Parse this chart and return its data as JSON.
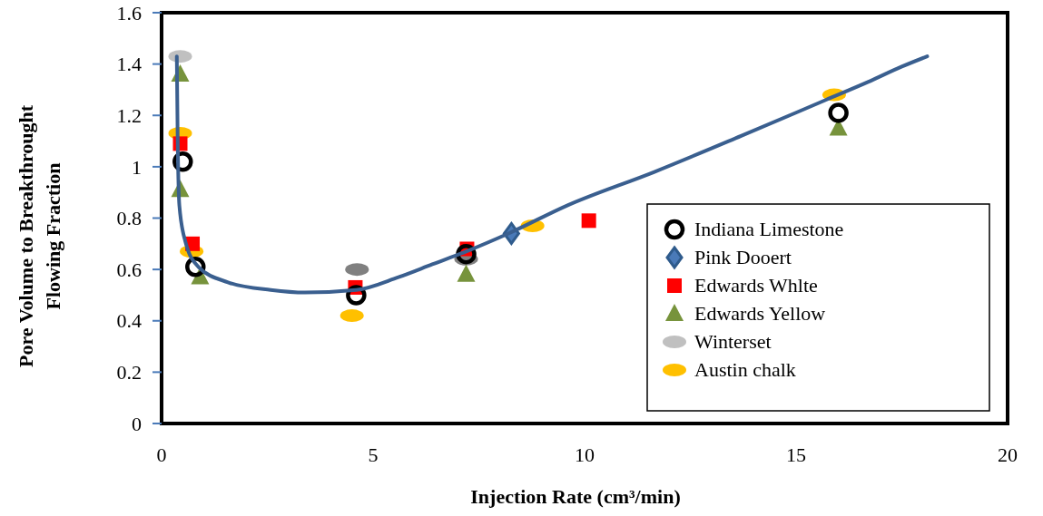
{
  "chart_data": {
    "type": "scatter",
    "xlabel": "Injection Rate (cm³/min)",
    "ylabel": "Pore Volume to Breakthrought\nFlowing Fraction",
    "xlim": [
      0,
      20
    ],
    "xticks": [
      0,
      5,
      10,
      15,
      20
    ],
    "ylim": [
      0,
      1.6
    ],
    "yticks": [
      0,
      0.2,
      0.4,
      0.6,
      0.8,
      1,
      1.2,
      1.4,
      1.6
    ],
    "grid": false,
    "legend": "right",
    "series": [
      {
        "type": "line",
        "color": "#3a5f8f",
        "x": [
          0.36,
          0.38,
          0.42,
          0.56,
          0.87,
          1.57,
          2.58,
          3.39,
          4.6,
          5.6,
          6.4,
          7.2,
          8.2,
          9.6,
          11.65,
          13.7,
          15.7,
          16.7,
          17.5,
          18.1
        ],
        "values": [
          1.43,
          1.12,
          0.85,
          0.71,
          0.61,
          0.55,
          0.52,
          0.51,
          0.52,
          0.57,
          0.62,
          0.67,
          0.74,
          0.85,
          0.98,
          1.12,
          1.26,
          1.33,
          1.39,
          1.43
        ]
      },
      {
        "name": "Indiana Limestone",
        "color": "#000000",
        "marker": "circle",
        "x": [
          0.5,
          0.8,
          4.6,
          7.2,
          16
        ],
        "values": [
          1.02,
          0.61,
          0.5,
          0.66,
          1.21
        ]
      },
      {
        "name": "Pink Dooert",
        "color": "#4a7ab8",
        "marker": "diamond",
        "x": [
          8.27
        ],
        "values": [
          0.74
        ]
      },
      {
        "name": "Edwards Whlte",
        "color": "#ff0000",
        "marker": "square",
        "x": [
          0.44,
          0.73,
          4.58,
          7.22,
          10.1
        ],
        "values": [
          1.09,
          0.7,
          0.53,
          0.68,
          0.79
        ]
      },
      {
        "name": "Edwards Yellow",
        "color": "#77933c",
        "marker": "triangle",
        "x": [
          0.44,
          0.44,
          0.91,
          7.2,
          16
        ],
        "values": [
          1.36,
          0.91,
          0.57,
          0.58,
          1.15
        ]
      },
      {
        "name": "Winterset",
        "color": "#c0c0c0",
        "colors": [
          "#c0c0c0",
          "#808080",
          "#808080"
        ],
        "x": [
          0.44,
          4.62,
          7.2
        ],
        "values": [
          1.43,
          0.6,
          0.64
        ]
      },
      {
        "name": "Austin chalk",
        "color": "#ffc000",
        "x": [
          0.44,
          0.71,
          4.5,
          8.77,
          15.9
        ],
        "values": [
          1.13,
          0.67,
          0.42,
          0.77,
          1.28
        ]
      }
    ]
  }
}
